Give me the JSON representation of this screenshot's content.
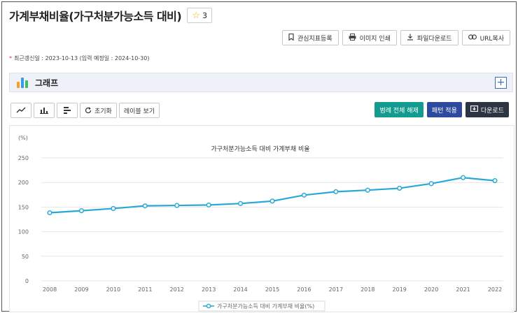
{
  "header": {
    "title": "가계부채비율(가구처분가능소득 대비)",
    "star_count": "3"
  },
  "actions": [
    {
      "icon": "bookmark-icon",
      "label": "관심지표등록"
    },
    {
      "icon": "print-icon",
      "label": "이미지 인쇄"
    },
    {
      "icon": "download-icon",
      "label": "파일다운로드"
    },
    {
      "icon": "link-icon",
      "label": "URL복사"
    }
  ],
  "update_info": "최근갱신일 : 2023-10-13 (입력 예정일 : 2024-10-30)",
  "graph_section": {
    "label": "그래프",
    "expand_symbol": "+"
  },
  "toolbar": {
    "reset_label": "초기화",
    "label_view": "레이블 보기",
    "legend_toggle": "범례 전체 해제",
    "pattern_apply": "패턴 적용",
    "download": "다운로드"
  },
  "colors": {
    "series": "#29a8d8",
    "teal": "#139b8f",
    "blue": "#2e4a9e",
    "dark": "#2d3442"
  },
  "chart_data": {
    "type": "line",
    "title": "가구처분가능소득 대비 가계부채 비율",
    "unit_label": "(%)",
    "x": [
      "2008",
      "2009",
      "2010",
      "2011",
      "2012",
      "2013",
      "2014",
      "2015",
      "2016",
      "2017",
      "2018",
      "2019",
      "2020",
      "2021",
      "2022"
    ],
    "series": [
      {
        "name": "가구처분가능소득 대비 가계부채 비율(%)",
        "values": [
          138.5,
          142.6,
          147.1,
          152.5,
          153.3,
          154.3,
          157.2,
          162.2,
          174.3,
          181.3,
          184.4,
          188.3,
          197.7,
          209.9,
          203.7
        ]
      }
    ],
    "ylim": [
      0,
      250
    ],
    "yticks": [
      "0",
      "50",
      "100",
      "150",
      "200",
      "250"
    ],
    "grid": true,
    "legend": "bottom"
  }
}
